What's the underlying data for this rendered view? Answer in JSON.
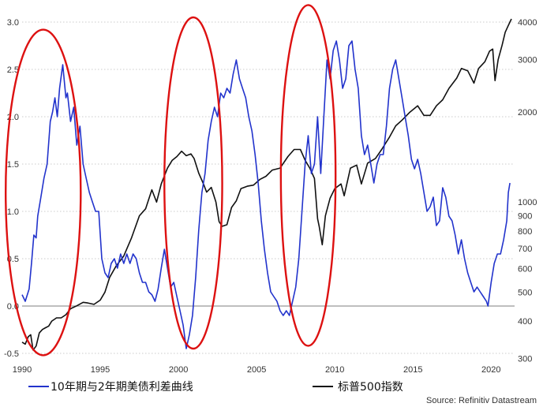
{
  "chart_data": {
    "type": "line",
    "x_axis": {
      "range": [
        1990,
        2021.5
      ],
      "ticks": [
        1990,
        1995,
        2000,
        2005,
        2010,
        2015,
        2020
      ]
    },
    "y_left": {
      "range": [
        -0.6,
        3.05
      ],
      "ticks": [
        -0.5,
        0.0,
        0.5,
        1.0,
        1.5,
        2.0,
        2.5,
        3.0
      ],
      "tick_labels": [
        "-0.5",
        "0.0",
        "0.5",
        "1.0",
        "1.5",
        "2.0",
        "2.5",
        "3.0"
      ]
    },
    "y_right": {
      "scale": "log",
      "range": [
        290,
        4150
      ],
      "ticks": [
        300,
        400,
        500,
        600,
        700,
        800,
        900,
        1000,
        2000,
        3000,
        4000
      ]
    },
    "series": [
      {
        "name": "10年期与2年期美债利差曲线",
        "axis": "left",
        "color": "#2233cc",
        "points": [
          [
            1990.0,
            0.12
          ],
          [
            1990.2,
            0.05
          ],
          [
            1990.45,
            0.18
          ],
          [
            1990.6,
            0.45
          ],
          [
            1990.75,
            0.75
          ],
          [
            1990.9,
            0.72
          ],
          [
            1991.0,
            0.95
          ],
          [
            1991.2,
            1.15
          ],
          [
            1991.4,
            1.35
          ],
          [
            1991.6,
            1.5
          ],
          [
            1991.8,
            1.95
          ],
          [
            1991.95,
            2.05
          ],
          [
            1992.1,
            2.2
          ],
          [
            1992.25,
            2.0
          ],
          [
            1992.4,
            2.3
          ],
          [
            1992.6,
            2.55
          ],
          [
            1992.8,
            2.2
          ],
          [
            1992.9,
            2.25
          ],
          [
            1993.1,
            1.95
          ],
          [
            1993.3,
            2.1
          ],
          [
            1993.5,
            1.7
          ],
          [
            1993.7,
            1.9
          ],
          [
            1993.9,
            1.5
          ],
          [
            1994.1,
            1.35
          ],
          [
            1994.3,
            1.2
          ],
          [
            1994.5,
            1.1
          ],
          [
            1994.7,
            1.0
          ],
          [
            1994.9,
            1.0
          ],
          [
            1995.1,
            0.5
          ],
          [
            1995.3,
            0.35
          ],
          [
            1995.5,
            0.3
          ],
          [
            1995.7,
            0.45
          ],
          [
            1995.9,
            0.5
          ],
          [
            1996.1,
            0.4
          ],
          [
            1996.3,
            0.55
          ],
          [
            1996.5,
            0.45
          ],
          [
            1996.7,
            0.55
          ],
          [
            1996.9,
            0.45
          ],
          [
            1997.1,
            0.55
          ],
          [
            1997.3,
            0.5
          ],
          [
            1997.5,
            0.35
          ],
          [
            1997.7,
            0.25
          ],
          [
            1997.9,
            0.25
          ],
          [
            1998.1,
            0.15
          ],
          [
            1998.3,
            0.12
          ],
          [
            1998.5,
            0.05
          ],
          [
            1998.7,
            0.18
          ],
          [
            1998.9,
            0.4
          ],
          [
            1999.1,
            0.6
          ],
          [
            1999.3,
            0.4
          ],
          [
            1999.5,
            0.2
          ],
          [
            1999.7,
            0.25
          ],
          [
            1999.9,
            0.1
          ],
          [
            2000.1,
            -0.05
          ],
          [
            2000.3,
            -0.2
          ],
          [
            2000.5,
            -0.45
          ],
          [
            2000.7,
            -0.3
          ],
          [
            2000.9,
            -0.1
          ],
          [
            2001.1,
            0.3
          ],
          [
            2001.3,
            0.8
          ],
          [
            2001.5,
            1.2
          ],
          [
            2001.7,
            1.4
          ],
          [
            2001.9,
            1.75
          ],
          [
            2002.1,
            1.95
          ],
          [
            2002.3,
            2.1
          ],
          [
            2002.5,
            2.0
          ],
          [
            2002.7,
            2.25
          ],
          [
            2002.9,
            2.2
          ],
          [
            2003.1,
            2.3
          ],
          [
            2003.3,
            2.25
          ],
          [
            2003.5,
            2.45
          ],
          [
            2003.7,
            2.6
          ],
          [
            2003.9,
            2.4
          ],
          [
            2004.1,
            2.3
          ],
          [
            2004.3,
            2.2
          ],
          [
            2004.5,
            2.0
          ],
          [
            2004.7,
            1.85
          ],
          [
            2004.9,
            1.6
          ],
          [
            2005.1,
            1.3
          ],
          [
            2005.3,
            0.9
          ],
          [
            2005.5,
            0.6
          ],
          [
            2005.7,
            0.35
          ],
          [
            2005.9,
            0.15
          ],
          [
            2006.1,
            0.1
          ],
          [
            2006.3,
            0.05
          ],
          [
            2006.5,
            -0.05
          ],
          [
            2006.7,
            -0.1
          ],
          [
            2006.9,
            -0.05
          ],
          [
            2007.1,
            -0.1
          ],
          [
            2007.3,
            0.05
          ],
          [
            2007.5,
            0.2
          ],
          [
            2007.7,
            0.5
          ],
          [
            2007.9,
            1.0
          ],
          [
            2008.1,
            1.5
          ],
          [
            2008.3,
            1.8
          ],
          [
            2008.5,
            1.4
          ],
          [
            2008.7,
            1.5
          ],
          [
            2008.9,
            2.0
          ],
          [
            2009.1,
            1.4
          ],
          [
            2009.3,
            2.0
          ],
          [
            2009.5,
            2.6
          ],
          [
            2009.7,
            2.4
          ],
          [
            2009.9,
            2.7
          ],
          [
            2010.1,
            2.8
          ],
          [
            2010.3,
            2.6
          ],
          [
            2010.5,
            2.3
          ],
          [
            2010.7,
            2.4
          ],
          [
            2010.9,
            2.75
          ],
          [
            2011.1,
            2.8
          ],
          [
            2011.3,
            2.5
          ],
          [
            2011.5,
            2.3
          ],
          [
            2011.7,
            1.8
          ],
          [
            2011.9,
            1.6
          ],
          [
            2012.1,
            1.7
          ],
          [
            2012.3,
            1.5
          ],
          [
            2012.5,
            1.3
          ],
          [
            2012.7,
            1.5
          ],
          [
            2012.9,
            1.6
          ],
          [
            2013.1,
            1.6
          ],
          [
            2013.3,
            1.9
          ],
          [
            2013.5,
            2.3
          ],
          [
            2013.7,
            2.5
          ],
          [
            2013.9,
            2.6
          ],
          [
            2014.1,
            2.4
          ],
          [
            2014.3,
            2.2
          ],
          [
            2014.5,
            2.0
          ],
          [
            2014.7,
            1.8
          ],
          [
            2014.9,
            1.55
          ],
          [
            2015.1,
            1.45
          ],
          [
            2015.3,
            1.55
          ],
          [
            2015.5,
            1.4
          ],
          [
            2015.7,
            1.2
          ],
          [
            2015.9,
            1.0
          ],
          [
            2016.1,
            1.05
          ],
          [
            2016.3,
            1.15
          ],
          [
            2016.5,
            0.85
          ],
          [
            2016.7,
            0.9
          ],
          [
            2016.9,
            1.25
          ],
          [
            2017.1,
            1.15
          ],
          [
            2017.3,
            0.95
          ],
          [
            2017.5,
            0.9
          ],
          [
            2017.7,
            0.75
          ],
          [
            2017.9,
            0.55
          ],
          [
            2018.1,
            0.7
          ],
          [
            2018.3,
            0.5
          ],
          [
            2018.5,
            0.35
          ],
          [
            2018.7,
            0.25
          ],
          [
            2018.9,
            0.15
          ],
          [
            2019.1,
            0.2
          ],
          [
            2019.3,
            0.15
          ],
          [
            2019.5,
            0.1
          ],
          [
            2019.7,
            0.05
          ],
          [
            2019.8,
            0.0
          ],
          [
            2020.0,
            0.25
          ],
          [
            2020.2,
            0.45
          ],
          [
            2020.4,
            0.55
          ],
          [
            2020.6,
            0.55
          ],
          [
            2020.8,
            0.7
          ],
          [
            2021.0,
            0.9
          ],
          [
            2021.1,
            1.2
          ],
          [
            2021.2,
            1.3
          ]
        ]
      },
      {
        "name": "标普500指数",
        "axis": "right",
        "color": "#111111",
        "points": [
          [
            1990.0,
            340
          ],
          [
            1990.2,
            335
          ],
          [
            1990.4,
            355
          ],
          [
            1990.55,
            360
          ],
          [
            1990.7,
            320
          ],
          [
            1990.9,
            330
          ],
          [
            1991.1,
            365
          ],
          [
            1991.3,
            375
          ],
          [
            1991.5,
            380
          ],
          [
            1991.7,
            385
          ],
          [
            1991.9,
            400
          ],
          [
            1992.2,
            410
          ],
          [
            1992.5,
            410
          ],
          [
            1992.8,
            420
          ],
          [
            1993.1,
            440
          ],
          [
            1993.5,
            450
          ],
          [
            1993.9,
            462
          ],
          [
            1994.2,
            460
          ],
          [
            1994.6,
            455
          ],
          [
            1995.0,
            470
          ],
          [
            1995.3,
            500
          ],
          [
            1995.6,
            560
          ],
          [
            1996.0,
            610
          ],
          [
            1996.5,
            660
          ],
          [
            1997.0,
            760
          ],
          [
            1997.5,
            900
          ],
          [
            1997.9,
            950
          ],
          [
            1998.3,
            1100
          ],
          [
            1998.6,
            1000
          ],
          [
            1998.9,
            1150
          ],
          [
            1999.3,
            1300
          ],
          [
            1999.6,
            1380
          ],
          [
            1999.9,
            1420
          ],
          [
            2000.2,
            1480
          ],
          [
            2000.5,
            1430
          ],
          [
            2000.8,
            1450
          ],
          [
            2001.0,
            1400
          ],
          [
            2001.3,
            1250
          ],
          [
            2001.6,
            1150
          ],
          [
            2001.8,
            1080
          ],
          [
            2002.1,
            1120
          ],
          [
            2002.4,
            1000
          ],
          [
            2002.6,
            860
          ],
          [
            2002.8,
            830
          ],
          [
            2003.1,
            840
          ],
          [
            2003.4,
            960
          ],
          [
            2003.7,
            1010
          ],
          [
            2004.0,
            1110
          ],
          [
            2004.4,
            1130
          ],
          [
            2004.8,
            1140
          ],
          [
            2005.2,
            1190
          ],
          [
            2005.6,
            1220
          ],
          [
            2006.0,
            1280
          ],
          [
            2006.5,
            1300
          ],
          [
            2007.0,
            1420
          ],
          [
            2007.4,
            1500
          ],
          [
            2007.8,
            1500
          ],
          [
            2008.1,
            1380
          ],
          [
            2008.4,
            1300
          ],
          [
            2008.7,
            1200
          ],
          [
            2008.9,
            880
          ],
          [
            2009.0,
            830
          ],
          [
            2009.2,
            720
          ],
          [
            2009.4,
            900
          ],
          [
            2009.7,
            1030
          ],
          [
            2010.0,
            1110
          ],
          [
            2010.4,
            1150
          ],
          [
            2010.6,
            1050
          ],
          [
            2011.0,
            1300
          ],
          [
            2011.4,
            1330
          ],
          [
            2011.7,
            1150
          ],
          [
            2012.1,
            1350
          ],
          [
            2012.6,
            1400
          ],
          [
            2013.0,
            1500
          ],
          [
            2013.5,
            1650
          ],
          [
            2013.9,
            1800
          ],
          [
            2014.3,
            1880
          ],
          [
            2014.8,
            2000
          ],
          [
            2015.3,
            2100
          ],
          [
            2015.7,
            1950
          ],
          [
            2016.1,
            1950
          ],
          [
            2016.5,
            2100
          ],
          [
            2016.9,
            2200
          ],
          [
            2017.3,
            2400
          ],
          [
            2017.8,
            2600
          ],
          [
            2018.1,
            2800
          ],
          [
            2018.5,
            2750
          ],
          [
            2018.9,
            2500
          ],
          [
            2019.2,
            2800
          ],
          [
            2019.6,
            2950
          ],
          [
            2019.9,
            3200
          ],
          [
            2020.1,
            3250
          ],
          [
            2020.25,
            2550
          ],
          [
            2020.45,
            3000
          ],
          [
            2020.7,
            3350
          ],
          [
            2020.9,
            3700
          ],
          [
            2021.1,
            3900
          ],
          [
            2021.3,
            4100
          ]
        ]
      }
    ],
    "highlights": [
      {
        "center_x": 1991.35,
        "center_y": 1.2,
        "rx_years": 2.4,
        "ry": 1.72
      },
      {
        "center_x": 2000.95,
        "center_y": 1.3,
        "rx_years": 1.85,
        "ry": 1.75
      },
      {
        "center_x": 2008.3,
        "center_y": 1.38,
        "rx_years": 1.75,
        "ry": 1.8
      }
    ],
    "baseline": {
      "value": 0.0,
      "color": "#999999"
    },
    "grid": "horizontal-dotted",
    "legend_position": "bottom",
    "source": "Source: Refinitiv Datastream"
  }
}
